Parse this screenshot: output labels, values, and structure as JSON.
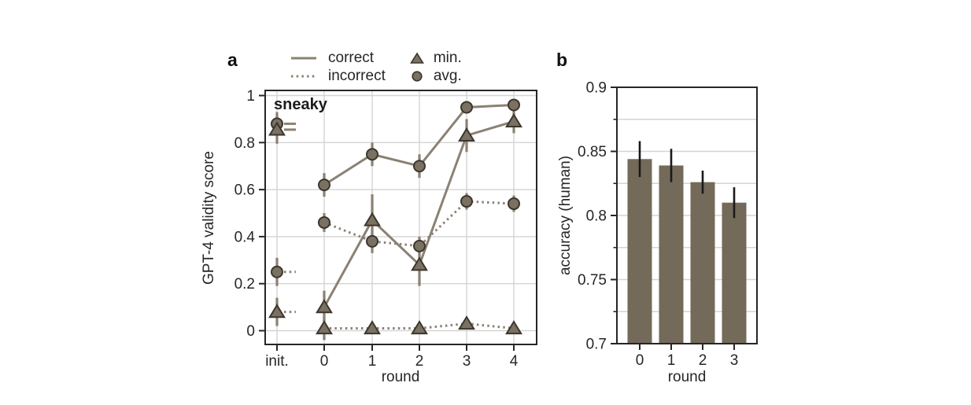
{
  "figure": {
    "panel_a": {
      "letter": "a"
    },
    "panel_b": {
      "letter": "b"
    }
  },
  "colors": {
    "line": "#8b8173",
    "marker_fill": "#7a7163",
    "marker_edge": "#3c362d",
    "bar": "#746a59",
    "error_bar_a": "#8b8173",
    "error_bar_b": "#1a1a1a",
    "grid": "#d4d4d4",
    "axis": "#262626",
    "text": "#262626"
  },
  "chart_data": [
    {
      "id": "panel_a",
      "type": "line",
      "title": "sneaky",
      "xlabel": "round",
      "ylabel": "GPT-4 validity score",
      "categories": [
        "init.",
        "0",
        "1",
        "2",
        "3",
        "4"
      ],
      "ylim": [
        0,
        1
      ],
      "grid": true,
      "note": "init. points are detached with short line-style stubs; error bars on every point",
      "yticks": [
        {
          "value": 0,
          "label": "0"
        },
        {
          "value": 0.2,
          "label": "0.2"
        },
        {
          "value": 0.4,
          "label": "0.4"
        },
        {
          "value": 0.6,
          "label": "0.6"
        },
        {
          "value": 0.8,
          "label": "0.8"
        },
        {
          "value": 1,
          "label": "1"
        }
      ],
      "series": [
        {
          "name": "correct avg.",
          "line": "solid",
          "marker": "circle",
          "values": [
            0.88,
            0.62,
            0.75,
            0.7,
            0.95,
            0.96
          ],
          "errors": [
            0.05,
            0.05,
            0.05,
            0.05,
            0.02,
            0.02
          ]
        },
        {
          "name": "correct min.",
          "line": "solid",
          "marker": "triangle",
          "values": [
            0.855,
            0.1,
            0.47,
            0.28,
            0.83,
            0.89
          ],
          "errors": [
            0.06,
            0.07,
            0.11,
            0.09,
            0.07,
            0.05
          ]
        },
        {
          "name": "incorrect avg.",
          "line": "dotted",
          "marker": "circle",
          "values": [
            0.25,
            0.46,
            0.38,
            0.36,
            0.55,
            0.54
          ],
          "errors": [
            0.06,
            0.04,
            0.05,
            0.04,
            0.035,
            0.035
          ]
        },
        {
          "name": "incorrect min.",
          "line": "dotted",
          "marker": "triangle",
          "values": [
            0.08,
            0.01,
            0.01,
            0.01,
            0.03,
            0.01
          ],
          "errors": [
            0.06,
            0.05,
            0.02,
            0.015,
            0.025,
            0.015
          ]
        }
      ],
      "legend": {
        "position": "above",
        "entries": [
          {
            "label": "correct",
            "style": "line-solid"
          },
          {
            "label": "incorrect",
            "style": "line-dotted"
          },
          {
            "label": "min.",
            "style": "marker-triangle"
          },
          {
            "label": "avg.",
            "style": "marker-circle"
          }
        ]
      }
    },
    {
      "id": "panel_b",
      "type": "bar",
      "xlabel": "round",
      "ylabel": "accuracy (human)",
      "categories": [
        "0",
        "1",
        "2",
        "3"
      ],
      "values": [
        0.844,
        0.839,
        0.826,
        0.81
      ],
      "errors": [
        0.014,
        0.013,
        0.009,
        0.012
      ],
      "ylim": [
        0.7,
        0.9
      ],
      "grid": true,
      "yticks": [
        {
          "value": 0.7,
          "label": "0.7"
        },
        {
          "value": 0.75,
          "label": "0.75"
        },
        {
          "value": 0.8,
          "label": "0.8"
        },
        {
          "value": 0.85,
          "label": "0.85"
        },
        {
          "value": 0.9,
          "label": "0.9"
        }
      ],
      "yticks_minor": [
        0.725,
        0.775,
        0.825,
        0.875
      ]
    }
  ]
}
